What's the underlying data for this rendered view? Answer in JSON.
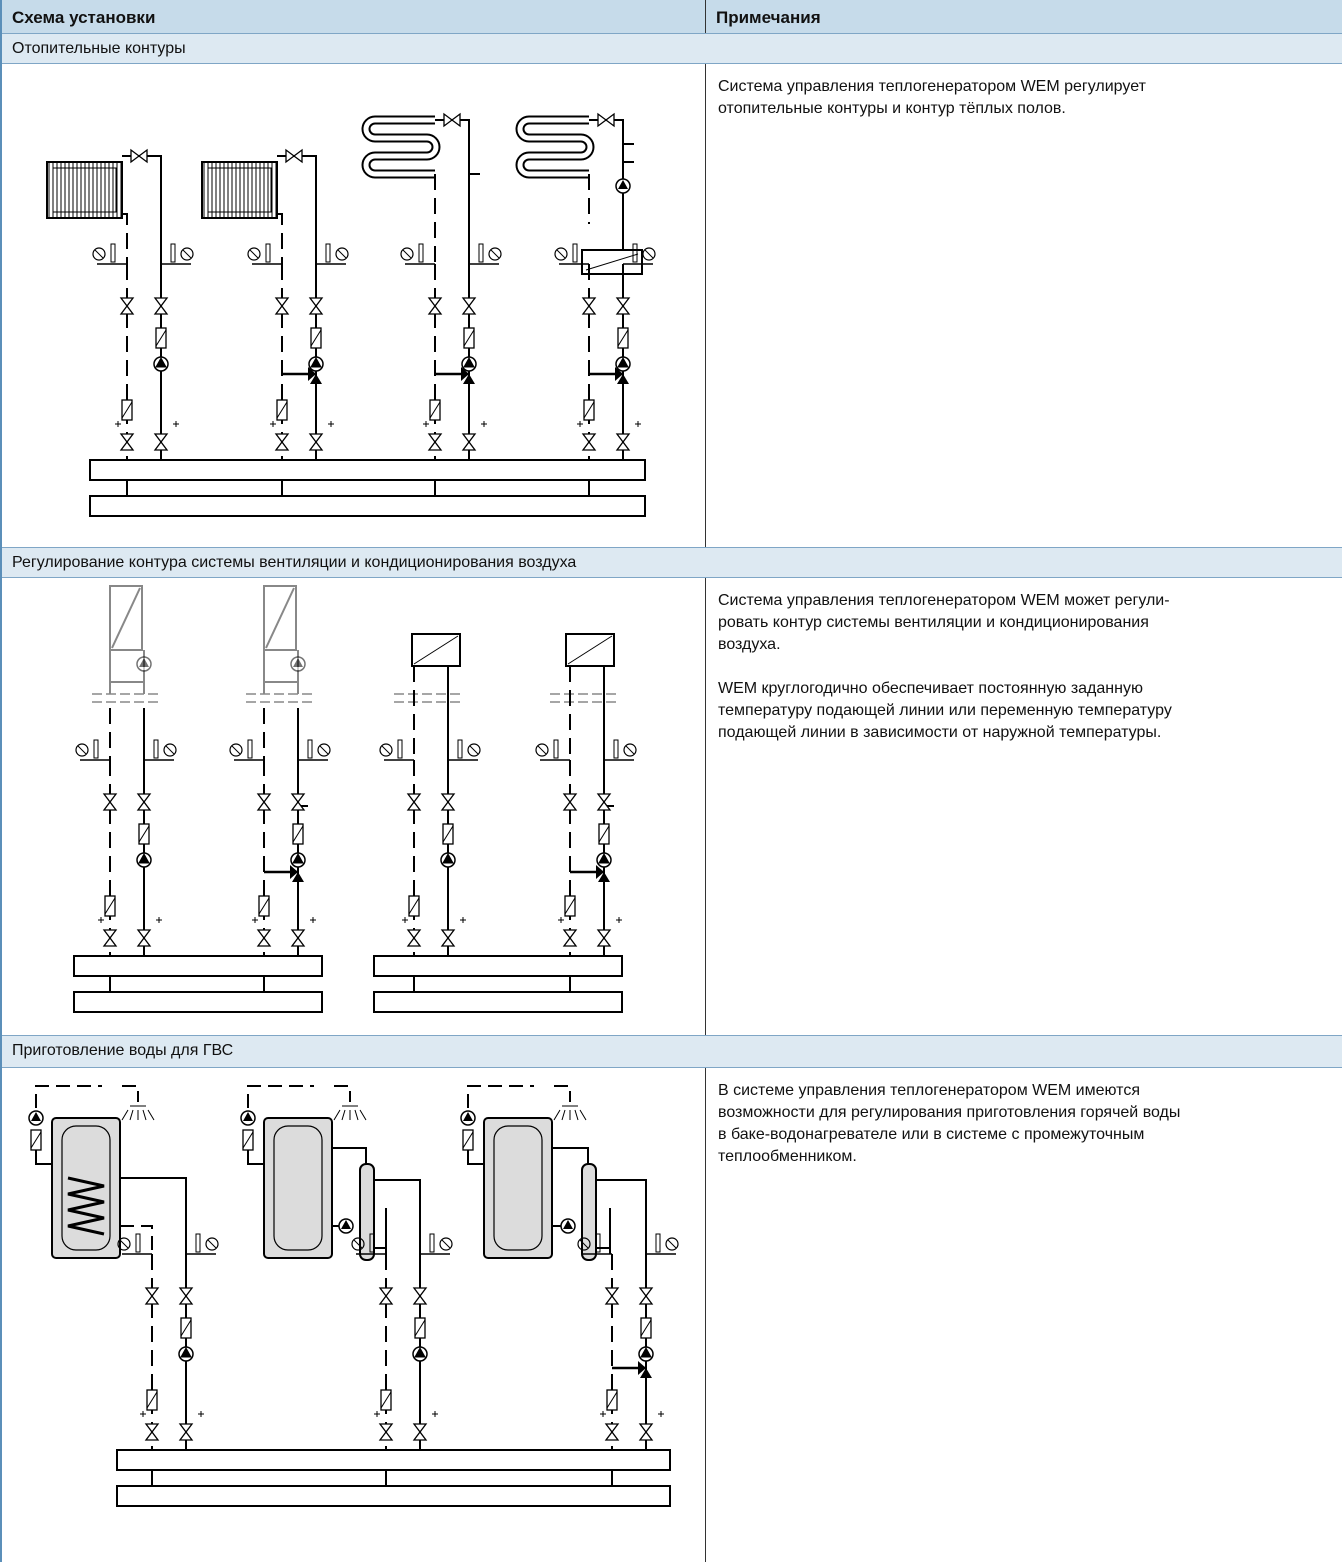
{
  "header": {
    "columns": [
      "Схема установки",
      "Примечания"
    ]
  },
  "sections": [
    {
      "title": "Отопительные контуры",
      "notes": [
        [
          "Система управления теплогенератором WEM регулирует",
          "отопительные контуры и контур тёплых полов."
        ]
      ]
    },
    {
      "title": "Регулирование контура системы вентиляции и кондиционирования воздуха",
      "notes": [
        [
          "Система управления теплогенератором WEM может регули-",
          "ровать контур системы вентиляции и кондиционирования",
          "воздуха."
        ],
        [
          "WEM круглогодично обеспечивает постоянную заданную",
          "температуру подающей линии или переменную температуру",
          "подающей линии в зависимости от наружной температуры."
        ]
      ]
    },
    {
      "title": "Приготовление воды для ГВС",
      "notes": [
        [
          "В системе управления теплогенератором WEM имеются",
          "возможности для регулирования приготовления горячей воды",
          "в баке-водонагревателе или в системе с промежуточным",
          "теплообменником."
        ]
      ]
    }
  ]
}
